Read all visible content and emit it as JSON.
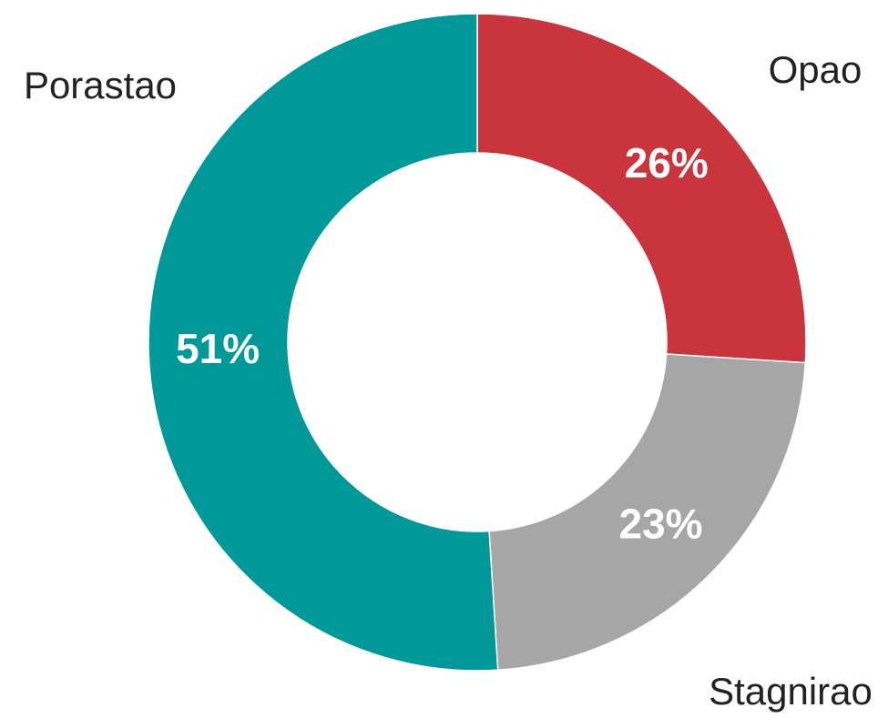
{
  "chart_data": {
    "type": "donut",
    "categories": [
      "Opao",
      "Stagnirao",
      "Porastao"
    ],
    "values": [
      26,
      23,
      51
    ],
    "value_labels": [
      "26%",
      "23%",
      "51%"
    ],
    "colors": [
      "#c9343d",
      "#a6a6a6",
      "#009999"
    ]
  }
}
